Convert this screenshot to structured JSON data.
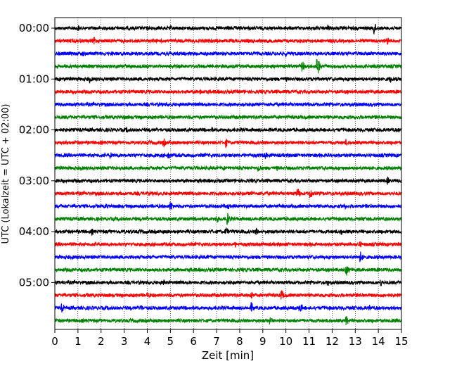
{
  "chart_data": {
    "type": "line",
    "title": "",
    "xlabel": "Zeit  [min]",
    "ylabel": "UTC (Lokalzeit = UTC + 02:00)",
    "xlim": [
      0,
      15
    ],
    "xticks": [
      "0",
      "1",
      "2",
      "3",
      "4",
      "5",
      "6",
      "7",
      "8",
      "9",
      "10",
      "11",
      "12",
      "13",
      "14",
      "15"
    ],
    "ytick_labels": [
      "00:00",
      "01:00",
      "02:00",
      "03:00",
      "04:00",
      "05:00"
    ],
    "ytick_rows": [
      0,
      4,
      8,
      12,
      16,
      20
    ],
    "trace_count": 24,
    "trace_interval_min": 15,
    "grid_vertical": true,
    "grid_style": "dotted",
    "colors": [
      "#000000",
      "#ff0000",
      "#0000ff",
      "#008000"
    ],
    "events": [
      {
        "trace": 0,
        "x": 1.0,
        "a": 0.5
      },
      {
        "trace": 0,
        "x": 5.0,
        "a": 0.4
      },
      {
        "trace": 0,
        "x": 7.5,
        "a": 0.4
      },
      {
        "trace": 0,
        "x": 11.8,
        "a": 0.6
      },
      {
        "trace": 0,
        "x": 13.8,
        "a": 1.0
      },
      {
        "trace": 1,
        "x": 1.7,
        "a": 0.6
      },
      {
        "trace": 1,
        "x": 14.4,
        "a": 0.6
      },
      {
        "trace": 2,
        "x": 1.2,
        "a": 0.5
      },
      {
        "trace": 2,
        "x": 10.0,
        "a": 0.5
      },
      {
        "trace": 3,
        "x": 10.7,
        "a": 0.9
      },
      {
        "trace": 3,
        "x": 11.35,
        "a": 1.4
      },
      {
        "trace": 4,
        "x": 1.5,
        "a": 0.6
      },
      {
        "trace": 4,
        "x": 10.0,
        "a": 0.4
      },
      {
        "trace": 4,
        "x": 14.5,
        "a": 0.6
      },
      {
        "trace": 5,
        "x": 6.3,
        "a": 0.5
      },
      {
        "trace": 5,
        "x": 11.0,
        "a": 0.3
      },
      {
        "trace": 7,
        "x": 3.0,
        "a": 0.4
      },
      {
        "trace": 8,
        "x": 3.1,
        "a": 0.4
      },
      {
        "trace": 8,
        "x": 6.8,
        "a": 0.4
      },
      {
        "trace": 8,
        "x": 14.9,
        "a": 0.4
      },
      {
        "trace": 9,
        "x": 4.7,
        "a": 0.7
      },
      {
        "trace": 9,
        "x": 7.4,
        "a": 0.7
      },
      {
        "trace": 9,
        "x": 12.6,
        "a": 0.5
      },
      {
        "trace": 10,
        "x": 2.4,
        "a": 0.5
      },
      {
        "trace": 10,
        "x": 4.9,
        "a": 0.7
      },
      {
        "trace": 10,
        "x": 9.1,
        "a": 0.6
      },
      {
        "trace": 10,
        "x": 11.8,
        "a": 0.5
      },
      {
        "trace": 11,
        "x": 7.3,
        "a": 0.4
      },
      {
        "trace": 11,
        "x": 8.8,
        "a": 0.7
      },
      {
        "trace": 11,
        "x": 9.6,
        "a": 0.4
      },
      {
        "trace": 12,
        "x": 14.4,
        "a": 0.6
      },
      {
        "trace": 13,
        "x": 8.5,
        "a": 0.5
      },
      {
        "trace": 13,
        "x": 10.5,
        "a": 0.9
      },
      {
        "trace": 13,
        "x": 11.05,
        "a": 0.9
      },
      {
        "trace": 14,
        "x": 2.2,
        "a": 0.5
      },
      {
        "trace": 14,
        "x": 5.0,
        "a": 0.8
      },
      {
        "trace": 14,
        "x": 7.5,
        "a": 0.5
      },
      {
        "trace": 14,
        "x": 12.5,
        "a": 0.6
      },
      {
        "trace": 15,
        "x": 7.0,
        "a": 0.7
      },
      {
        "trace": 15,
        "x": 7.45,
        "a": 1.0
      },
      {
        "trace": 16,
        "x": 1.6,
        "a": 0.5
      },
      {
        "trace": 16,
        "x": 7.4,
        "a": 0.7
      },
      {
        "trace": 16,
        "x": 8.7,
        "a": 0.6
      },
      {
        "trace": 16,
        "x": 12.4,
        "a": 0.5
      },
      {
        "trace": 17,
        "x": 7.8,
        "a": 0.4
      },
      {
        "trace": 17,
        "x": 13.2,
        "a": 0.5
      },
      {
        "trace": 18,
        "x": 6.6,
        "a": 0.4
      },
      {
        "trace": 18,
        "x": 13.2,
        "a": 1.0
      },
      {
        "trace": 19,
        "x": 12.6,
        "a": 0.9
      },
      {
        "trace": 20,
        "x": 4.7,
        "a": 0.5
      },
      {
        "trace": 20,
        "x": 11.8,
        "a": 0.6
      },
      {
        "trace": 20,
        "x": 14.1,
        "a": 0.6
      },
      {
        "trace": 21,
        "x": 4.0,
        "a": 0.5
      },
      {
        "trace": 21,
        "x": 8.5,
        "a": 0.7
      },
      {
        "trace": 21,
        "x": 9.8,
        "a": 0.9
      },
      {
        "trace": 22,
        "x": 0.3,
        "a": 0.7
      },
      {
        "trace": 22,
        "x": 3.7,
        "a": 0.6
      },
      {
        "trace": 22,
        "x": 8.5,
        "a": 0.8
      },
      {
        "trace": 22,
        "x": 10.6,
        "a": 0.9
      },
      {
        "trace": 22,
        "x": 13.6,
        "a": 0.5
      },
      {
        "trace": 23,
        "x": 9.3,
        "a": 0.7
      },
      {
        "trace": 23,
        "x": 12.6,
        "a": 0.8
      }
    ]
  }
}
